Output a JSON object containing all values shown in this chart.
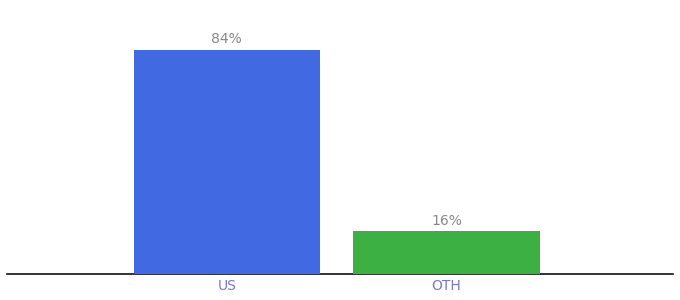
{
  "categories": [
    "US",
    "OTH"
  ],
  "values": [
    84,
    16
  ],
  "bar_colors": [
    "#4169E1",
    "#3CB043"
  ],
  "label_texts": [
    "84%",
    "16%"
  ],
  "background_color": "#ffffff",
  "ylim": [
    0,
    100
  ],
  "bar_width": 0.28,
  "label_fontsize": 10,
  "tick_fontsize": 10,
  "tick_color": "#7777cc",
  "spine_color": "#111111"
}
